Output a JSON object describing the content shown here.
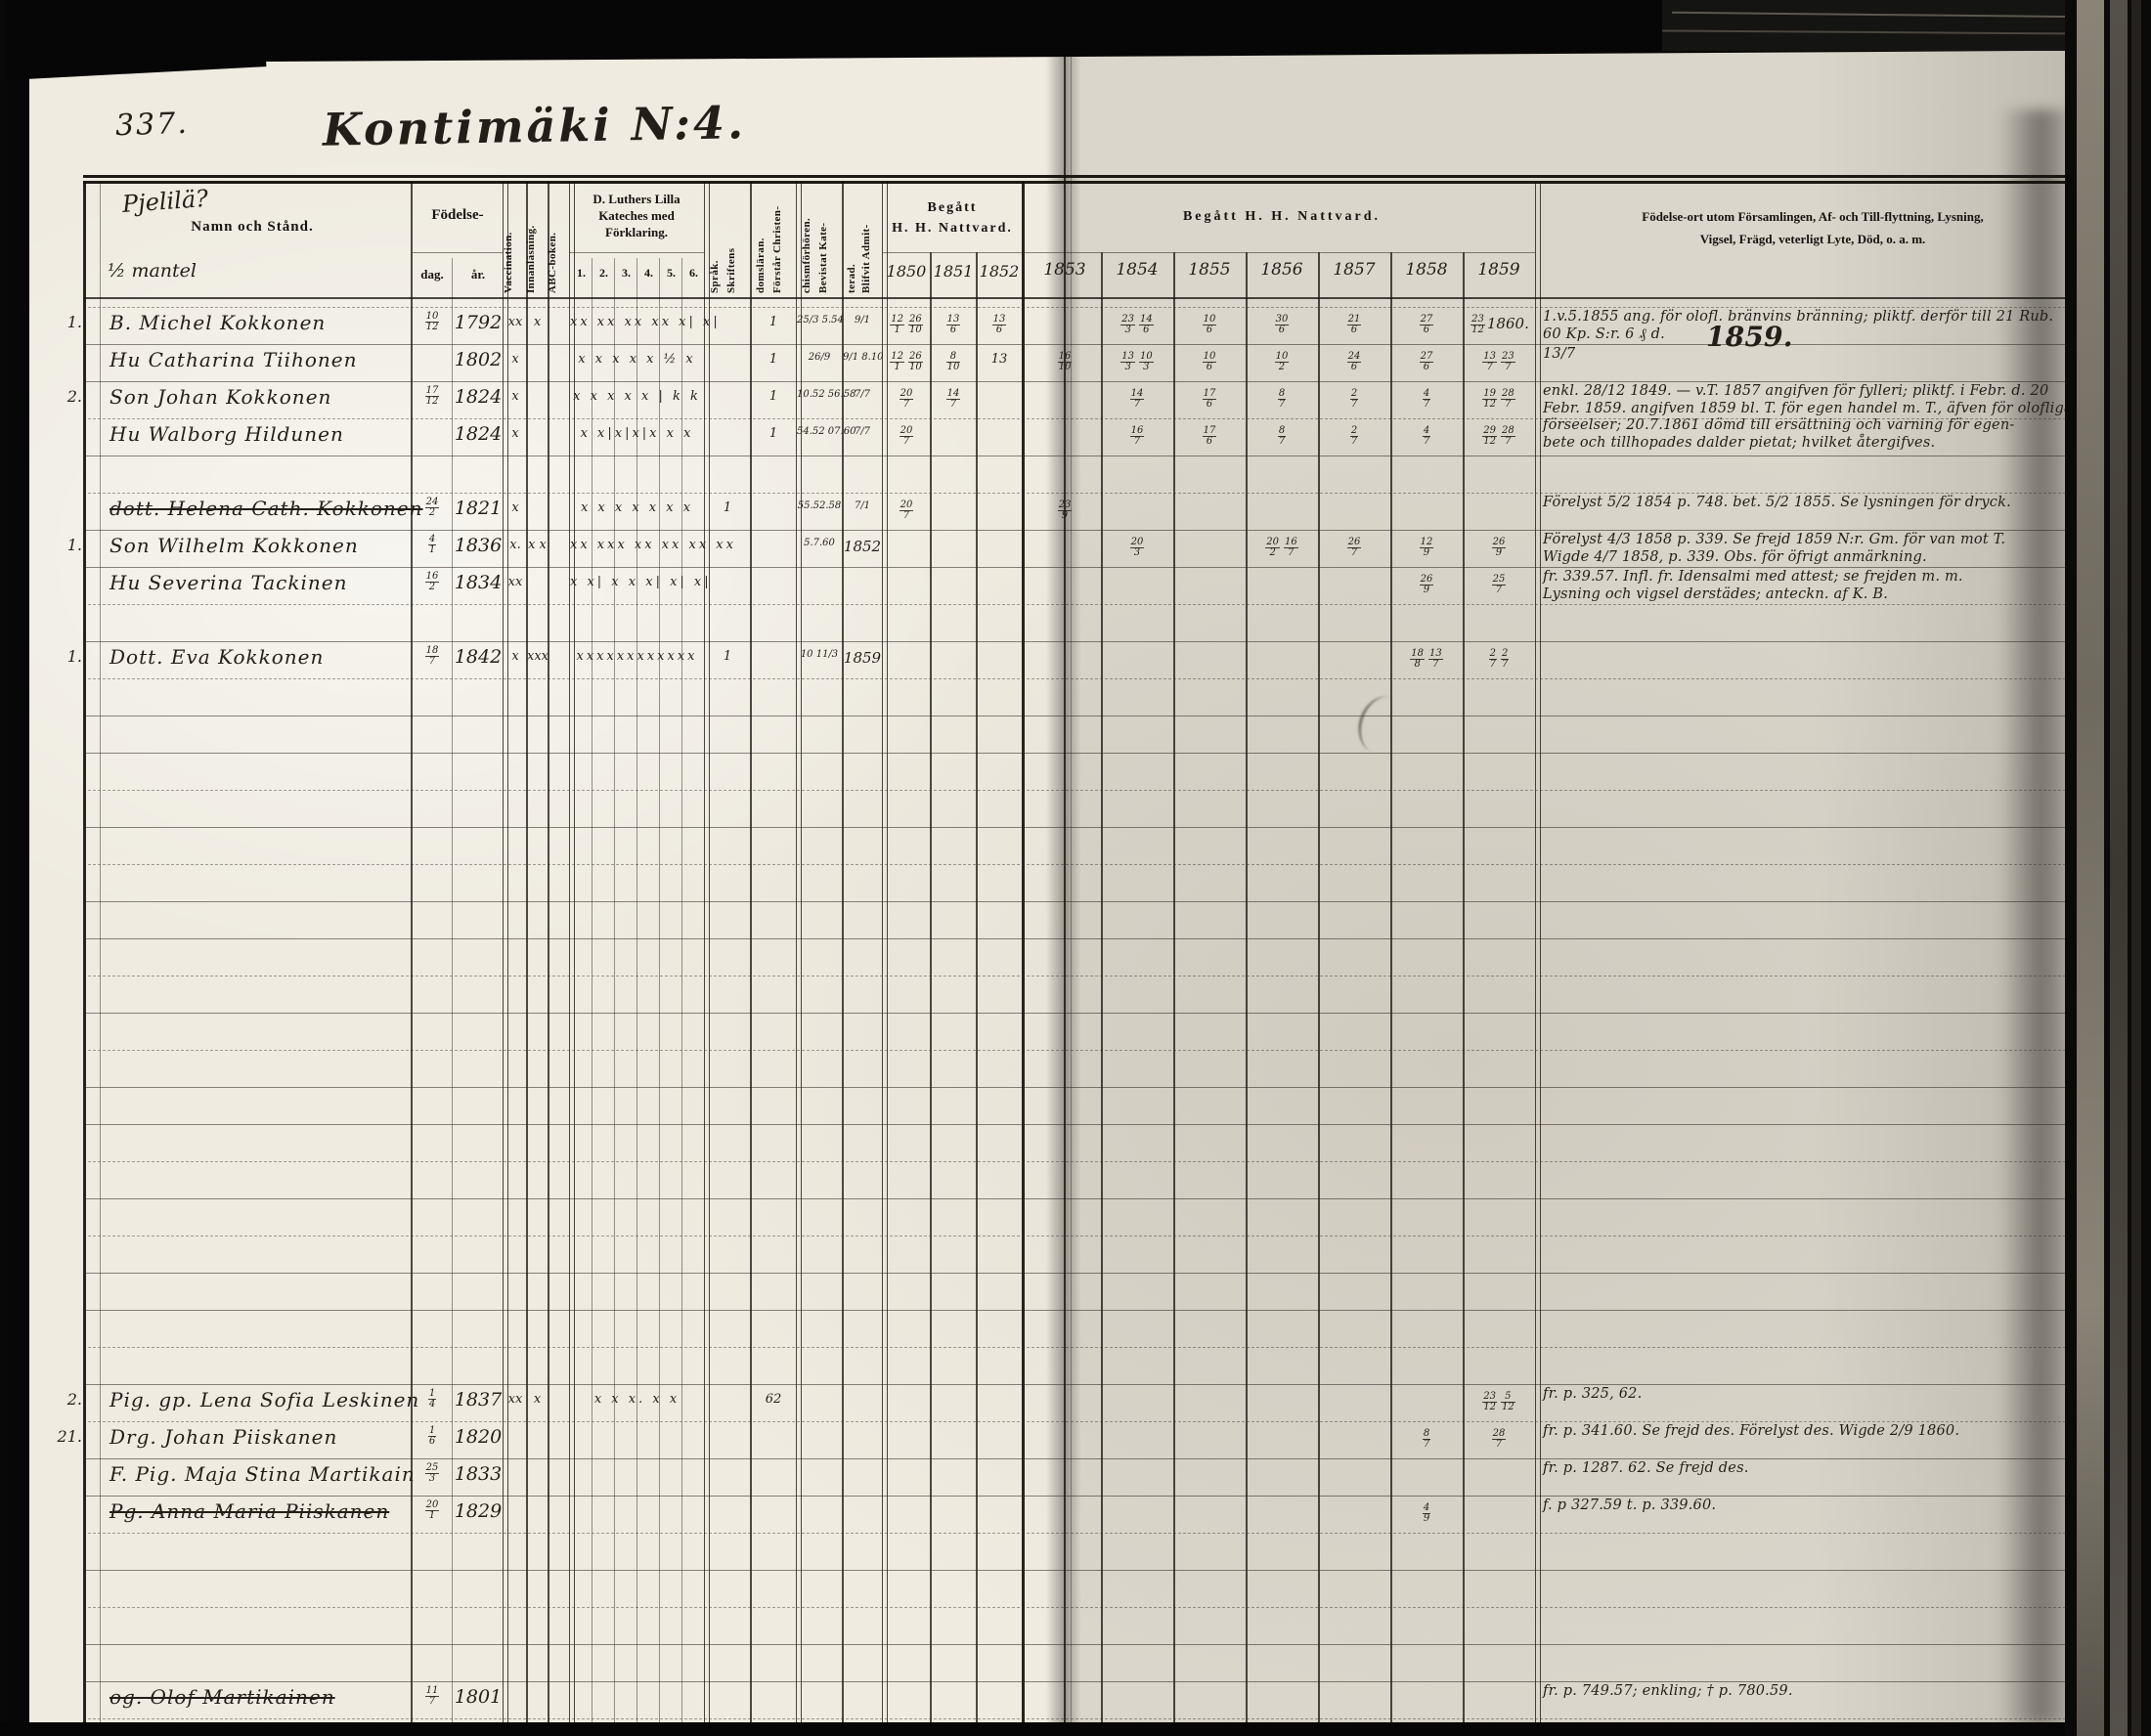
{
  "page": {
    "number": "337.",
    "title": "Kontimäki N:4.",
    "district_hand": "Pjelilä?",
    "mantal_hand": "½ mantel"
  },
  "header": {
    "name_col": "Namn och Stånd.",
    "birth": "Födelse-",
    "birth_day": "dag.",
    "birth_year": "år.",
    "vaccination": "Vaccination.",
    "innanlasning": "Innanläsning.",
    "abc": "ABC-boken.",
    "kateches_l1": "D. Luthers Lilla",
    "kateches_l2": "Kateches med",
    "kateches_l3": "Förklaring.",
    "kateches_cols": [
      "1.",
      "2.",
      "3.",
      "4.",
      "5.",
      "6."
    ],
    "sprak_l1": "Skriftens",
    "sprak_l2": "Språk.",
    "forsta_l1": "Förstår Christen-",
    "forsta_l2": "domsläran.",
    "bevistat_l1": "Bevistat Kate-",
    "bevistat_l2": "chismförhören.",
    "blifvit_l1": "Blifvit Admit-",
    "blifvit_l2": "terad.",
    "nattvard1_l1": "Begått",
    "nattvard1_l2": "H. H. Nattvard.",
    "nattvard1_years": [
      "1850",
      "1851",
      "1852"
    ],
    "nattvard2": "Begått H. H. Nattvard.",
    "nattvard2_years": [
      "1853",
      "1854",
      "1855",
      "1856",
      "1857",
      "1858",
      "1859"
    ],
    "notes_l1": "Födelse-ort utom Församlingen, Af- och Till-flyttning, Lysning,",
    "notes_l2": "Vigsel, Frägd, veterligt Lyte, Död, o. a. m."
  },
  "rows": [
    {
      "line": 0,
      "no": "1.",
      "name": "B. Michel Kokkonen",
      "day": "10/12",
      "year": "1792",
      "marks": {
        "vacc": "xx",
        "innan": "x",
        "kat": "xx xx xx xx x| x|",
        "forsta": "1",
        "bevistat": "25/3 5.54",
        "blifvit": "9/1",
        "y1850": "12/1 26/10",
        "y1851": "13/6",
        "y1852": "13/6",
        "y1854": "23/3 14/6",
        "y1855": "10/6",
        "y1856": "30/6",
        "y1857": "21/6",
        "y1858": "27/6",
        "y1859": "23/12 1860."
      },
      "note": [
        "1.v.5.1855 ang. för olofl. bränvins bränning; pliktf. derför till 21 Rub.",
        "60 Kp. S:r.  6 ₰ d."
      ],
      "note_big": "1859."
    },
    {
      "line": 1,
      "no": "",
      "name": "Hu Catharina Tiihonen",
      "day": "",
      "year": "1802",
      "marks": {
        "vacc": "x",
        "kat": "x x x x x ½ x",
        "forsta": "1",
        "bevistat": "26/9",
        "blifvit": "9/1 8.10",
        "y1850": "12/1 26/10",
        "y1851": "8/10",
        "y1852": "13",
        "y1853": "16/10",
        "y1854": "13/3 10/3",
        "y1855": "10/6",
        "y1856": "10/2",
        "y1857": "24/6",
        "y1858": "27/6",
        "y1859": "13/7 23/7"
      },
      "note": [
        "13/7"
      ]
    },
    {
      "line": 2,
      "no": "2.",
      "name": "Son Johan Kokkonen",
      "day": "17/12",
      "year": "1824",
      "marks": {
        "vacc": "x",
        "kat": "x x x x x | k k",
        "forsta": "1",
        "bevistat": "10.52 56.58",
        "blifvit": "7/7",
        "y1850": "20/7",
        "y1851": "14/7",
        "y1854": "14/7",
        "y1855": "17/6",
        "y1856": "8/7",
        "y1857": "2/7",
        "y1858": "4/7",
        "y1859": "19/12 28/7"
      },
      "note": [
        "enkl. 28/12 1849. — v.T. 1857 angifven för fylleri; pliktf. i Febr. d. 20",
        "Febr. 1859. angifven 1859 bl. T. för egen handel m. T., äfven för olofliga",
        "förseelser; 20.7.1861 dömd till ersättning och varning för egen-",
        "bete och tillhopades dalder pietat; hvilket återgifves."
      ]
    },
    {
      "line": 3,
      "no": "",
      "name": "Hu Walborg Hildunen",
      "day": "",
      "year": "1824",
      "marks": {
        "vacc": "x",
        "kat": "x x|x|x|x x x",
        "forsta": "1",
        "bevistat": "54.52 07.60",
        "blifvit": "7/7",
        "y1850": "20/7",
        "y1854": "16/7",
        "y1855": "17/6",
        "y1856": "8/7",
        "y1857": "2/7",
        "y1858": "4/7",
        "y1859": "29/12 28/7"
      },
      "note": []
    },
    {
      "line": 5,
      "no": "",
      "name": "dott. Helena Cath. Kokkonen",
      "struck": true,
      "day": "24/2",
      "year": "1821",
      "marks": {
        "vacc": "x",
        "kat": "x x x x x x x",
        "sprak": "1",
        "bevistat": "55.52.58",
        "blifvit": "7/1",
        "y1850": "20/7",
        "y1853": "23/9"
      },
      "note": [
        "Förelyst 5/2 1854 p. 748. bet. 5/2 1855. Se lysningen för dryck."
      ]
    },
    {
      "line": 6,
      "no": "1.",
      "name": "Son Wilhelm Kokkonen",
      "day": "4/1",
      "year": "1836",
      "marks": {
        "vacc": "x.",
        "innan": "x x",
        "kat": "xx xxx xx xx xx xx",
        "bevistat": "5.7.60",
        "blifvit": "1852",
        "y1854": "20/3",
        "y1856": "20/2 16/7",
        "y1857": "26/7",
        "y1858": "12/9",
        "y1859": "26/9"
      },
      "note": [
        "Förelyst 4/3 1858 p. 339. Se frejd 1859 N:r. Gm. för van mot T.",
        "Wigde 4/7 1858, p. 339. Obs. för öfrigt anmärkning."
      ]
    },
    {
      "line": 7,
      "no": "",
      "name": "Hu Severina Tackinen",
      "day": "16/2",
      "year": "1834",
      "marks": {
        "vacc": "xx",
        "kat": "x x| x x x| x| x|",
        "y1858": "26/9",
        "y1859": "25/7"
      },
      "note": [
        "fr. 339.57. Infl. fr. Idensalmi med attest; se frejden m. m.",
        "Lysning och vigsel derstädes; anteckn. af K. B."
      ]
    },
    {
      "line": 9,
      "no": "1.",
      "name": "Dott. Eva Kokkonen",
      "day": "18/7",
      "year": "1842",
      "marks": {
        "vacc": "x",
        "innan": "xxx",
        "kat": "xxxxxxxxxxxx",
        "sprak": "1",
        "bevistat": "10 11/3",
        "blifvit": "1859",
        "y1858": "18/8 13/7",
        "y1859": "2/7 2/7"
      },
      "note": []
    },
    {
      "line": 29,
      "no": "2.",
      "name": "Pig. gp. Lena Sofia Leskinen",
      "day": "1/4",
      "year": "1837",
      "marks": {
        "vacc": "xx",
        "innan": "x",
        "kat": "x x x. x x",
        "forsta": "62",
        "y1859": "23/12 5/12"
      },
      "note": [
        "fr. p. 325, 62."
      ]
    },
    {
      "line": 30,
      "no": "21.",
      "name": "Drg. Johan Piiskanen",
      "day": "1/6",
      "year": "1820",
      "marks": {
        "y1858": "8/7",
        "y1859": "28/7"
      },
      "note": [
        "fr. p. 341.60. Se frejd des. Förelyst des. Wigde 2/9 1860."
      ]
    },
    {
      "line": 31,
      "no": "",
      "name": "F. Pig. Maja Stina Martikain",
      "day": "25/3",
      "year": "1833",
      "marks": {},
      "note": [
        "fr. p. 1287. 62. Se frejd des."
      ]
    },
    {
      "line": 32,
      "no": "",
      "name": "Pg. Anna Maria Piiskanen",
      "struck": true,
      "day": "20/1",
      "year": "1829",
      "marks": {
        "y1858": "4/9"
      },
      "note": [
        "f. p 327.59 t. p. 339.60."
      ]
    },
    {
      "line": 37,
      "no": "",
      "name": "og. Olof Martikainen",
      "struck": true,
      "day": "11/7",
      "year": "1801",
      "marks": {},
      "note": [
        "fr. p. 749.57; enkling; † p. 780.59."
      ]
    }
  ]
}
